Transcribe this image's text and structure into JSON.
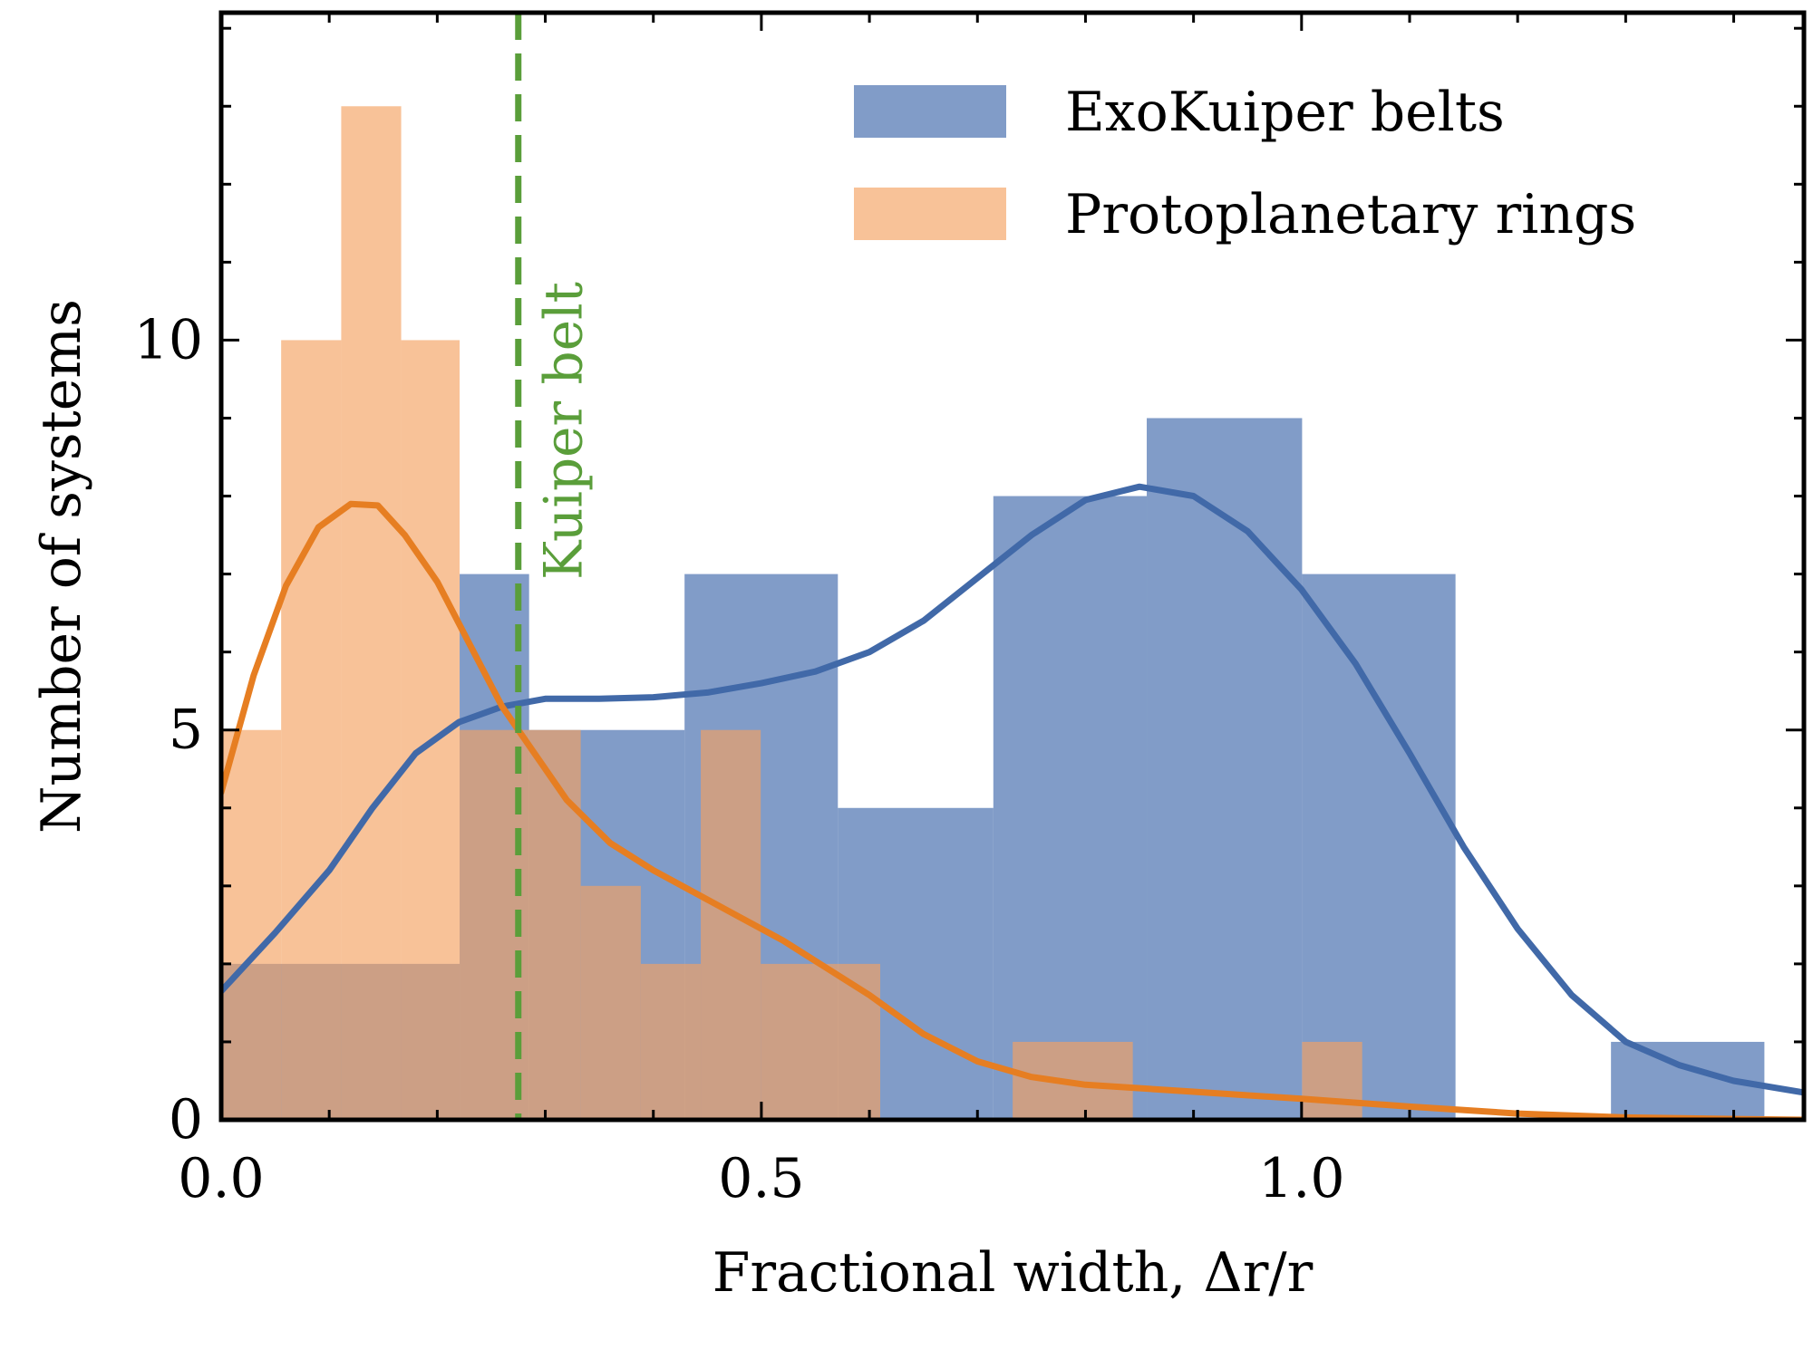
{
  "chart_data": {
    "type": "bar",
    "title": "",
    "xlabel": "Fractional width, Δr/r",
    "ylabel": "Number of systems",
    "xlim": [
      0,
      1.465
    ],
    "ylim": [
      0,
      14.2
    ],
    "x_ticks": [
      {
        "value": 0.0,
        "label": "0.0"
      },
      {
        "value": 0.5,
        "label": "0.5"
      },
      {
        "value": 1.0,
        "label": "1.0"
      }
    ],
    "y_ticks": [
      {
        "value": 0,
        "label": "0"
      },
      {
        "value": 5,
        "label": "5"
      },
      {
        "value": 10,
        "label": "10"
      }
    ],
    "x_minor_step": 0.1,
    "y_minor_step": 1,
    "grid": false,
    "legend_position": "top-right",
    "series": [
      {
        "name": "ExoKuiper belts",
        "kind": "histogram",
        "color": "#4C72B0",
        "bins": [
          {
            "x0": 0.0,
            "x1": 0.2207,
            "count": 2
          },
          {
            "x0": 0.2207,
            "x1": 0.285,
            "count": 7
          },
          {
            "x0": 0.285,
            "x1": 0.4289,
            "count": 5
          },
          {
            "x0": 0.4289,
            "x1": 0.5708,
            "count": 7
          },
          {
            "x0": 0.5708,
            "x1": 0.7147,
            "count": 4
          },
          {
            "x0": 0.7147,
            "x1": 0.8567,
            "count": 8
          },
          {
            "x0": 0.8567,
            "x1": 1.0005,
            "count": 9
          },
          {
            "x0": 1.0005,
            "x1": 1.1425,
            "count": 7
          },
          {
            "x0": 1.1425,
            "x1": 1.2864,
            "count": 0
          },
          {
            "x0": 1.2864,
            "x1": 1.4284,
            "count": 1
          }
        ]
      },
      {
        "name": "Protoplanetary rings",
        "kind": "histogram",
        "color": "#F4A261",
        "bins": [
          {
            "x0": 0.0,
            "x1": 0.0555,
            "count": 5
          },
          {
            "x0": 0.0555,
            "x1": 0.1111,
            "count": 10
          },
          {
            "x0": 0.1111,
            "x1": 0.1666,
            "count": 13
          },
          {
            "x0": 0.1666,
            "x1": 0.2207,
            "count": 10
          },
          {
            "x0": 0.2207,
            "x1": 0.3328,
            "count": 5
          },
          {
            "x0": 0.3328,
            "x1": 0.3884,
            "count": 3
          },
          {
            "x0": 0.3884,
            "x1": 0.4439,
            "count": 2
          },
          {
            "x0": 0.4439,
            "x1": 0.4994,
            "count": 5
          },
          {
            "x0": 0.4994,
            "x1": 0.61,
            "count": 2
          },
          {
            "x0": 0.7326,
            "x1": 0.8438,
            "count": 1
          },
          {
            "x0": 1.0005,
            "x1": 1.0561,
            "count": 1
          }
        ]
      }
    ],
    "kde_curves": [
      {
        "series": "ExoKuiper belts",
        "color": "#4169A8",
        "x": [
          0.0,
          0.05,
          0.1,
          0.14,
          0.18,
          0.22,
          0.26,
          0.3,
          0.35,
          0.4,
          0.45,
          0.5,
          0.55,
          0.6,
          0.65,
          0.7,
          0.75,
          0.8,
          0.85,
          0.9,
          0.95,
          1.0,
          1.05,
          1.1,
          1.15,
          1.2,
          1.25,
          1.3,
          1.35,
          1.4,
          1.465
        ],
        "y": [
          1.65,
          2.4,
          3.2,
          4.0,
          4.7,
          5.1,
          5.3,
          5.4,
          5.4,
          5.42,
          5.48,
          5.6,
          5.75,
          6.0,
          6.4,
          6.95,
          7.5,
          7.95,
          8.12,
          8.0,
          7.55,
          6.8,
          5.85,
          4.7,
          3.5,
          2.45,
          1.6,
          1.0,
          0.7,
          0.5,
          0.35
        ]
      },
      {
        "series": "Protoplanetary rings",
        "color": "#E67E22",
        "x": [
          0.0,
          0.03,
          0.06,
          0.09,
          0.12,
          0.145,
          0.17,
          0.2,
          0.23,
          0.26,
          0.29,
          0.32,
          0.36,
          0.4,
          0.44,
          0.48,
          0.52,
          0.56,
          0.6,
          0.65,
          0.7,
          0.75,
          0.8,
          0.9,
          1.0,
          1.05,
          1.1,
          1.2,
          1.3,
          1.4,
          1.465
        ],
        "y": [
          4.2,
          5.7,
          6.85,
          7.6,
          7.9,
          7.88,
          7.5,
          6.9,
          6.1,
          5.3,
          4.7,
          4.1,
          3.55,
          3.2,
          2.9,
          2.6,
          2.3,
          1.95,
          1.6,
          1.1,
          0.75,
          0.55,
          0.45,
          0.36,
          0.27,
          0.22,
          0.17,
          0.08,
          0.03,
          0.01,
          0.0
        ]
      }
    ],
    "reference_line": {
      "x": 0.275,
      "label": "Kuiper belt",
      "color": "#5A9E3A",
      "style": "dashed"
    }
  }
}
